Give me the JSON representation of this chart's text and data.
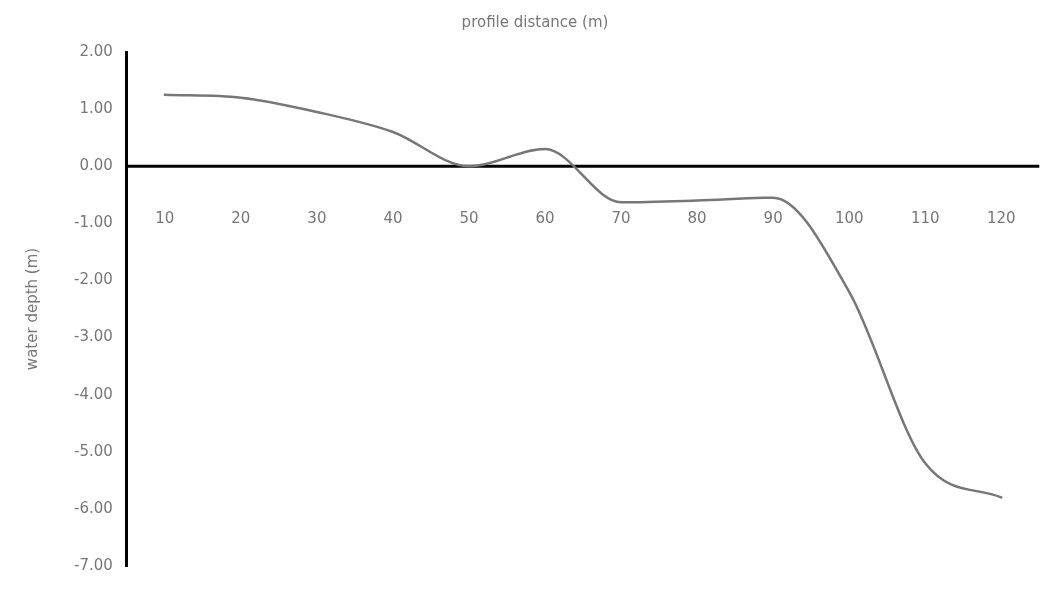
{
  "chart_data": {
    "type": "line",
    "xlabel": "profile distance (m)",
    "ylabel": "water depth (m)",
    "categories": [
      "10",
      "20",
      "30",
      "40",
      "50",
      "60",
      "70",
      "80",
      "90",
      "100",
      "110",
      "120"
    ],
    "series": [
      {
        "color": "#777777",
        "values": [
          1.25,
          1.2,
          0.95,
          0.6,
          0.0,
          0.3,
          -0.63,
          -0.6,
          -0.55,
          -2.2,
          -5.2,
          -5.8
        ]
      }
    ],
    "ylim": [
      -7,
      2
    ],
    "yticks": [
      {
        "value": 2,
        "label": "2.00"
      },
      {
        "value": 1,
        "label": "1.00"
      },
      {
        "value": 0,
        "label": "0.00"
      },
      {
        "value": -1,
        "label": "-1.00"
      },
      {
        "value": -2,
        "label": "-2.00"
      },
      {
        "value": -3,
        "label": "-3.00"
      },
      {
        "value": -4,
        "label": "-4.00"
      },
      {
        "value": -5,
        "label": "-5.00"
      },
      {
        "value": -6,
        "label": "-6.00"
      },
      {
        "value": -7,
        "label": "-7.00"
      }
    ],
    "ref_lines": [
      {
        "axis": "y",
        "value": 0,
        "color": "#000000"
      }
    ],
    "grid": false,
    "legend": false,
    "marker": "none",
    "line_style": "solid"
  }
}
